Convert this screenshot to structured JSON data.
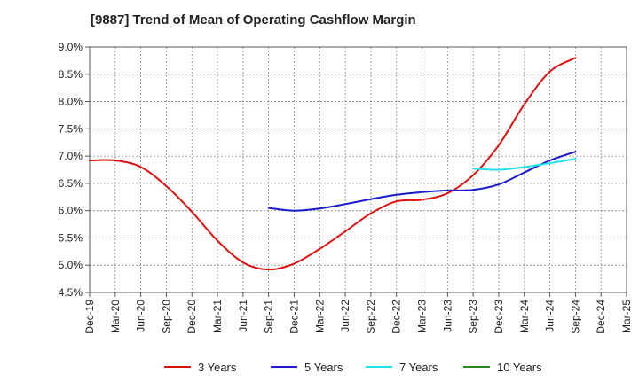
{
  "chart_data": {
    "type": "line",
    "title": "[9887]  Trend of Mean of Operating Cashflow Margin",
    "xlabel": "",
    "ylabel": "",
    "x_ticks": [
      "Dec-19",
      "Mar-20",
      "Jun-20",
      "Sep-20",
      "Dec-20",
      "Mar-21",
      "Jun-21",
      "Sep-21",
      "Dec-21",
      "Mar-22",
      "Jun-22",
      "Sep-22",
      "Dec-22",
      "Mar-23",
      "Jun-23",
      "Sep-23",
      "Dec-23",
      "Mar-24",
      "Jun-24",
      "Sep-24",
      "Dec-24",
      "Mar-25"
    ],
    "ylim": [
      4.5,
      9.0
    ],
    "y_ticks": [
      4.5,
      5.0,
      5.5,
      6.0,
      6.5,
      7.0,
      7.5,
      8.0,
      8.5,
      9.0
    ],
    "y_tick_labels": [
      "4.5%",
      "5.0%",
      "5.5%",
      "6.0%",
      "6.5%",
      "7.0%",
      "7.5%",
      "8.0%",
      "8.5%",
      "9.0%"
    ],
    "grid": true,
    "legend_position": "bottom",
    "series": [
      {
        "name": "3 Years",
        "color": "#dd1111",
        "x": [
          "Dec-19",
          "Mar-20",
          "Jun-20",
          "Sep-20",
          "Dec-20",
          "Mar-21",
          "Jun-21",
          "Sep-21",
          "Dec-21",
          "Mar-22",
          "Jun-22",
          "Sep-22",
          "Dec-22",
          "Mar-23",
          "Jun-23",
          "Sep-23",
          "Dec-23",
          "Mar-24",
          "Jun-24",
          "Sep-24"
        ],
        "values": [
          6.92,
          6.92,
          6.8,
          6.45,
          5.98,
          5.45,
          5.05,
          4.92,
          5.03,
          5.3,
          5.62,
          5.95,
          6.17,
          6.2,
          6.32,
          6.65,
          7.2,
          7.95,
          8.55,
          8.8
        ]
      },
      {
        "name": "5 Years",
        "color": "#1a1acc",
        "x": [
          "Sep-21",
          "Dec-21",
          "Mar-22",
          "Jun-22",
          "Sep-22",
          "Dec-22",
          "Mar-23",
          "Jun-23",
          "Sep-23",
          "Dec-23",
          "Mar-24",
          "Jun-24",
          "Sep-24"
        ],
        "values": [
          6.05,
          6.0,
          6.04,
          6.12,
          6.21,
          6.29,
          6.34,
          6.37,
          6.38,
          6.48,
          6.7,
          6.92,
          7.08
        ]
      },
      {
        "name": "7 Years",
        "color": "#22e0ee",
        "x": [
          "Sep-23",
          "Dec-23",
          "Mar-24",
          "Jun-24",
          "Sep-24"
        ],
        "values": [
          6.77,
          6.75,
          6.8,
          6.87,
          6.95
        ]
      },
      {
        "name": "10 Years",
        "color": "#228822",
        "x": [],
        "values": []
      }
    ]
  }
}
